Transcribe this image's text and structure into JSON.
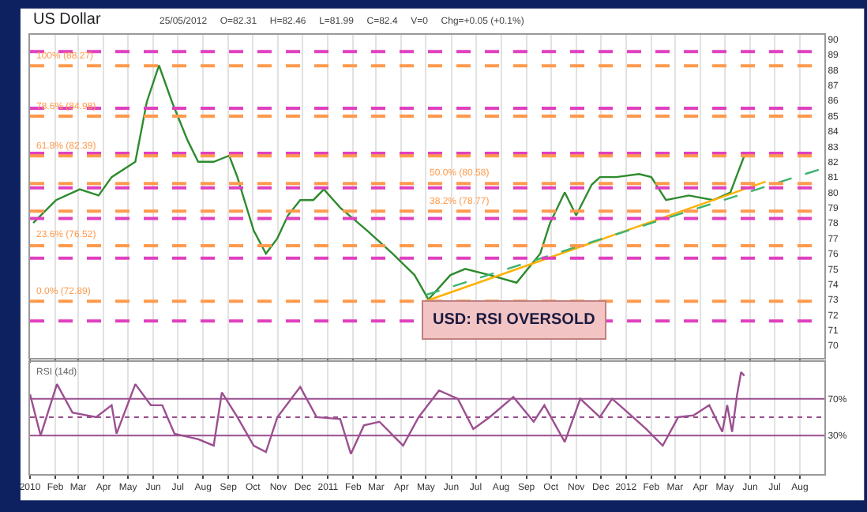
{
  "chart_data": [
    {
      "type": "line",
      "title": "US Dollar",
      "subtitle": "25/05/2012     O=82.31     H=82.46     L=81.99     C=82.4     V=0     Chg=+0.05 (+0.1%)",
      "series": [
        {
          "color": "#2e8b2e",
          "x": [
            "2010-01-05",
            "2010-02-02",
            "2010-03-03",
            "2010-03-26",
            "2010-04-11",
            "2010-05-10",
            "2010-05-24",
            "2010-06-08",
            "2010-06-24",
            "2010-07-13",
            "2010-07-26",
            "2010-08-14",
            "2010-09-02",
            "2010-09-12",
            "2010-10-02",
            "2010-10-17",
            "2010-10-31",
            "2010-11-13",
            "2010-11-28",
            "2010-12-14",
            "2010-12-27",
            "2011-01-16",
            "2011-02-18",
            "2011-03-21",
            "2011-04-17",
            "2011-05-04",
            "2011-05-31",
            "2011-06-18",
            "2011-07-18",
            "2011-08-20",
            "2011-09-18",
            "2011-09-30",
            "2011-10-18",
            "2011-11-01",
            "2011-11-20",
            "2011-11-30",
            "2011-12-20",
            "2012-01-17",
            "2012-02-01",
            "2012-02-19",
            "2012-03-18",
            "2012-04-17",
            "2012-05-08",
            "2012-05-15",
            "2012-05-25"
          ],
          "values": [
            78.0,
            79.5,
            80.2,
            79.8,
            81.0,
            82.0,
            85.9,
            88.3,
            85.9,
            83.4,
            82.0,
            82.0,
            82.4,
            81.0,
            77.5,
            76.0,
            77.0,
            78.5,
            79.5,
            79.5,
            80.2,
            79.0,
            77.5,
            76.0,
            74.6,
            73.0,
            74.6,
            75.0,
            74.6,
            74.1,
            76.0,
            78.0,
            80.0,
            78.5,
            80.5,
            81.0,
            81.0,
            81.2,
            81.0,
            79.5,
            79.8,
            79.5,
            80.0,
            81.0,
            82.4
          ]
        },
        {
          "type": "line",
          "color": "#ffb000",
          "x": [
            "2011-05-01",
            "2012-06-20"
          ],
          "values": [
            72.9,
            80.7
          ]
        },
        {
          "type": "line",
          "color": "#3cb371",
          "line_style": "dashed",
          "x": [
            "2011-05-01",
            "2012-08-31"
          ],
          "values": [
            73.3,
            81.6
          ]
        }
      ],
      "xlim": [
        "2010-01-01",
        "2012-08-31"
      ],
      "ylim": [
        69.2,
        90.3
      ],
      "yticks": [
        70,
        71,
        72,
        73,
        74,
        75,
        76,
        77,
        78,
        79,
        80,
        81,
        82,
        83,
        84,
        85,
        86,
        87,
        88,
        89,
        90
      ],
      "tick_labels": "y",
      "grid": "x",
      "ref_lines": [
        {
          "axis": "y",
          "value": 89.2,
          "label": null,
          "color": "#e040c0",
          "line_style": "dashed"
        },
        {
          "axis": "y",
          "value": 88.27,
          "label": "100% (88.27)",
          "color": "#ff9a4d",
          "line_style": "dashed"
        },
        {
          "axis": "y",
          "value": 85.5,
          "label": null,
          "color": "#e040c0",
          "line_style": "dashed"
        },
        {
          "axis": "y",
          "value": 84.98,
          "label": "78.6% (84.98)",
          "color": "#ff9a4d",
          "line_style": "dashed"
        },
        {
          "axis": "y",
          "value": 82.55,
          "label": null,
          "color": "#e040c0",
          "line_style": "dashed"
        },
        {
          "axis": "y",
          "value": 82.39,
          "label": "61.8% (82.39)",
          "color": "#ff9a4d",
          "line_style": "dashed"
        },
        {
          "axis": "y",
          "value": 80.58,
          "label": "50.0% (80.58)",
          "color": "#ff9a4d",
          "line_style": "dashed"
        },
        {
          "axis": "y",
          "value": 80.3,
          "label": null,
          "color": "#e040c0",
          "line_style": "dashed"
        },
        {
          "axis": "y",
          "value": 78.77,
          "label": "38.2% (78.77)",
          "color": "#ff9a4d",
          "line_style": "dashed"
        },
        {
          "axis": "y",
          "value": 78.3,
          "label": null,
          "color": "#e040c0",
          "line_style": "dashed"
        },
        {
          "axis": "y",
          "value": 76.52,
          "label": "23.6% (76.52)",
          "color": "#ff9a4d",
          "line_style": "dashed"
        },
        {
          "axis": "y",
          "value": 75.7,
          "label": null,
          "color": "#e040c0",
          "line_style": "dashed"
        },
        {
          "axis": "y",
          "value": 72.89,
          "label": "0.0% (72.89)",
          "color": "#ff9a4d",
          "line_style": "dashed"
        },
        {
          "axis": "y",
          "value": 71.6,
          "label": null,
          "color": "#e040c0",
          "line_style": "dashed"
        }
      ],
      "annotations": [
        "USD: RSI OVERSOLD"
      ]
    },
    {
      "type": "line",
      "title": "RSI (14d)",
      "series": [
        {
          "color": "#9b4f8f",
          "x": [
            "2010-01-01",
            "2010-01-14",
            "2010-02-03",
            "2010-02-22",
            "2010-03-23",
            "2010-04-11",
            "2010-04-17",
            "2010-05-10",
            "2010-05-29",
            "2010-06-12",
            "2010-06-27",
            "2010-07-26",
            "2010-08-14",
            "2010-08-24",
            "2010-09-12",
            "2010-10-02",
            "2010-10-17",
            "2010-10-31",
            "2010-11-28",
            "2010-12-18",
            "2011-01-16",
            "2011-01-29",
            "2011-02-14",
            "2011-03-05",
            "2011-04-03",
            "2011-04-22",
            "2011-05-17",
            "2011-06-09",
            "2011-06-28",
            "2011-07-18",
            "2011-08-16",
            "2011-09-10",
            "2011-09-23",
            "2011-10-18",
            "2011-11-06",
            "2011-11-30",
            "2011-12-15",
            "2011-12-28",
            "2012-01-26",
            "2012-02-15",
            "2012-03-05",
            "2012-03-24",
            "2012-04-12",
            "2012-04-28",
            "2012-05-04",
            "2012-05-10",
            "2012-05-16",
            "2012-05-21",
            "2012-05-25"
          ],
          "values": [
            75,
            30,
            86,
            55,
            50,
            63,
            32,
            86,
            63,
            63,
            32,
            26,
            19,
            77,
            50,
            19,
            12,
            50,
            83,
            50,
            48,
            10,
            41,
            45,
            19,
            50,
            79,
            70,
            37,
            50,
            72,
            45,
            63,
            23,
            70,
            50,
            70,
            60,
            37,
            19,
            50,
            52,
            63,
            34,
            63,
            34,
            74,
            99,
            95
          ]
        }
      ],
      "xlim": [
        "2010-01-01",
        "2012-08-31"
      ],
      "xticks": [
        {
          "value": "2010-01-01",
          "label": "2010"
        },
        {
          "value": "2010-02-01",
          "label": "Feb"
        },
        {
          "value": "2010-03-01",
          "label": "Mar"
        },
        {
          "value": "2010-04-01",
          "label": "Apr"
        },
        {
          "value": "2010-05-01",
          "label": "May"
        },
        {
          "value": "2010-06-01",
          "label": "Jun"
        },
        {
          "value": "2010-07-01",
          "label": "Jul"
        },
        {
          "value": "2010-08-01",
          "label": "Aug"
        },
        {
          "value": "2010-09-01",
          "label": "Sep"
        },
        {
          "value": "2010-10-01",
          "label": "Oct"
        },
        {
          "value": "2010-11-01",
          "label": "Nov"
        },
        {
          "value": "2010-12-01",
          "label": "Dec"
        },
        {
          "value": "2011-01-01",
          "label": "2011"
        },
        {
          "value": "2011-02-01",
          "label": "Feb"
        },
        {
          "value": "2011-03-01",
          "label": "Mar"
        },
        {
          "value": "2011-04-01",
          "label": "Apr"
        },
        {
          "value": "2011-05-01",
          "label": "May"
        },
        {
          "value": "2011-06-01",
          "label": "Jun"
        },
        {
          "value": "2011-07-01",
          "label": "Jul"
        },
        {
          "value": "2011-08-01",
          "label": "Aug"
        },
        {
          "value": "2011-09-01",
          "label": "Sep"
        },
        {
          "value": "2011-10-01",
          "label": "Oct"
        },
        {
          "value": "2011-11-01",
          "label": "Nov"
        },
        {
          "value": "2011-12-01",
          "label": "Dec"
        },
        {
          "value": "2012-01-01",
          "label": "2012"
        },
        {
          "value": "2012-02-01",
          "label": "Feb"
        },
        {
          "value": "2012-03-01",
          "label": "Mar"
        },
        {
          "value": "2012-04-01",
          "label": "Apr"
        },
        {
          "value": "2012-05-01",
          "label": "May"
        },
        {
          "value": "2012-06-01",
          "label": "Jun"
        },
        {
          "value": "2012-07-01",
          "label": "Jul"
        },
        {
          "value": "2012-08-01",
          "label": "Aug"
        }
      ],
      "ylim": [
        -12,
        110
      ],
      "yticks": [
        {
          "value": 30,
          "label": "30%"
        },
        {
          "value": 70,
          "label": "70%"
        }
      ],
      "grid": "x",
      "ref_lines": [
        {
          "axis": "y",
          "value": 70,
          "label": null,
          "color": "#9b4f8f",
          "line_style": "solid"
        },
        {
          "axis": "y",
          "value": 50,
          "label": null,
          "color": "#9b4f8f",
          "line_style": "dotted"
        },
        {
          "axis": "y",
          "value": 30,
          "label": null,
          "color": "#9b4f8f",
          "line_style": "solid"
        }
      ]
    }
  ]
}
